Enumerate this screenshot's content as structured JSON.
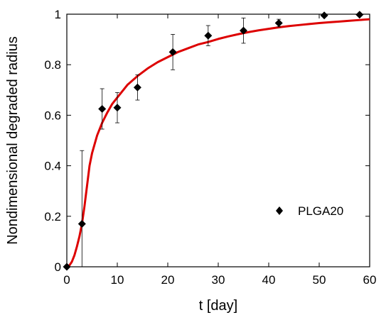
{
  "chart_data": {
    "type": "scatter",
    "title": "",
    "xlabel": "t [day]",
    "ylabel": "Nondimensional degraded radius",
    "xlim": [
      0,
      60
    ],
    "ylim": [
      0,
      1
    ],
    "xticks": [
      0,
      10,
      20,
      30,
      40,
      50,
      60
    ],
    "yticks": [
      0,
      0.2,
      0.4,
      0.6,
      0.8,
      1
    ],
    "ytick_labels": [
      "0",
      "0.2",
      "0.4",
      "0.6",
      "0.8",
      "1"
    ],
    "grid": false,
    "legend_position": "center-right",
    "series": [
      {
        "name": "PLGA20",
        "marker": "diamond",
        "color": "#000000",
        "points": [
          {
            "x": 0,
            "y": 0.0,
            "err": 0.0
          },
          {
            "x": 3,
            "y": 0.17,
            "err": 0.29
          },
          {
            "x": 7,
            "y": 0.625,
            "err": 0.08
          },
          {
            "x": 10,
            "y": 0.63,
            "err": 0.06
          },
          {
            "x": 14,
            "y": 0.71,
            "err": 0.05
          },
          {
            "x": 21,
            "y": 0.85,
            "err": 0.07
          },
          {
            "x": 28,
            "y": 0.915,
            "err": 0.04
          },
          {
            "x": 35,
            "y": 0.935,
            "err": 0.05
          },
          {
            "x": 42,
            "y": 0.965,
            "err": 0.015
          },
          {
            "x": 51,
            "y": 0.995,
            "err": 0.005
          },
          {
            "x": 58,
            "y": 0.998,
            "err": 0.003
          }
        ]
      }
    ],
    "fit_curve": {
      "color": "#dd0000",
      "x": [
        0,
        0.5,
        1,
        1.5,
        2,
        2.5,
        3,
        3.5,
        4,
        4.5,
        5,
        6,
        7,
        8,
        9,
        10,
        12,
        14,
        16,
        18,
        20,
        22,
        24,
        26,
        28,
        30,
        32,
        34,
        36,
        38,
        40,
        42,
        44,
        46,
        48,
        50,
        52,
        54,
        56,
        58,
        60
      ],
      "y": [
        0.0,
        0.005,
        0.02,
        0.045,
        0.08,
        0.12,
        0.17,
        0.24,
        0.32,
        0.4,
        0.45,
        0.52,
        0.57,
        0.61,
        0.645,
        0.67,
        0.72,
        0.755,
        0.785,
        0.81,
        0.83,
        0.85,
        0.865,
        0.88,
        0.89,
        0.902,
        0.912,
        0.921,
        0.929,
        0.936,
        0.942,
        0.948,
        0.953,
        0.957,
        0.961,
        0.965,
        0.968,
        0.971,
        0.974,
        0.977,
        0.98
      ]
    }
  }
}
